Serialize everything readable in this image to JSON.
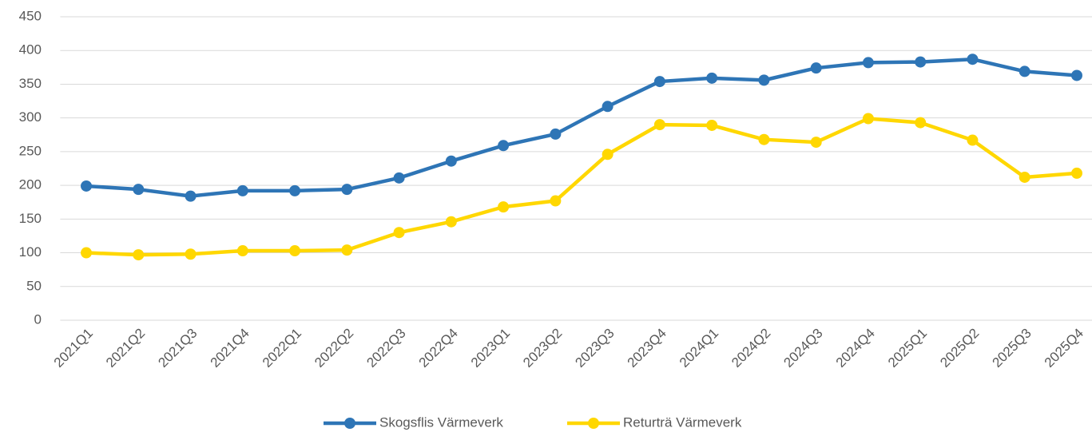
{
  "chart_data": {
    "type": "line",
    "categories": [
      "2021Q1",
      "2021Q2",
      "2021Q3",
      "2021Q4",
      "2022Q1",
      "2022Q2",
      "2022Q3",
      "2022Q4",
      "2023Q1",
      "2023Q2",
      "2023Q3",
      "2023Q4",
      "2024Q1",
      "2024Q2",
      "2024Q3",
      "2024Q4",
      "2025Q1",
      "2025Q2",
      "2025Q3",
      "2025Q4"
    ],
    "series": [
      {
        "name": "Skogsflis Värmeverk",
        "color": "#2e75b6",
        "values": [
          199,
          194,
          184,
          192,
          192,
          194,
          211,
          236,
          259,
          276,
          317,
          354,
          359,
          356,
          374,
          382,
          383,
          387,
          369,
          363
        ]
      },
      {
        "name": "Returträ Värmeverk",
        "color": "#ffd700",
        "values": [
          100,
          97,
          98,
          103,
          103,
          104,
          130,
          146,
          168,
          177,
          246,
          290,
          289,
          268,
          264,
          299,
          293,
          267,
          212,
          218
        ]
      }
    ],
    "ylim": [
      0,
      450
    ],
    "yticks": [
      0,
      50,
      100,
      150,
      200,
      250,
      300,
      350,
      400,
      450
    ],
    "grid": true,
    "legend": "bottom"
  }
}
